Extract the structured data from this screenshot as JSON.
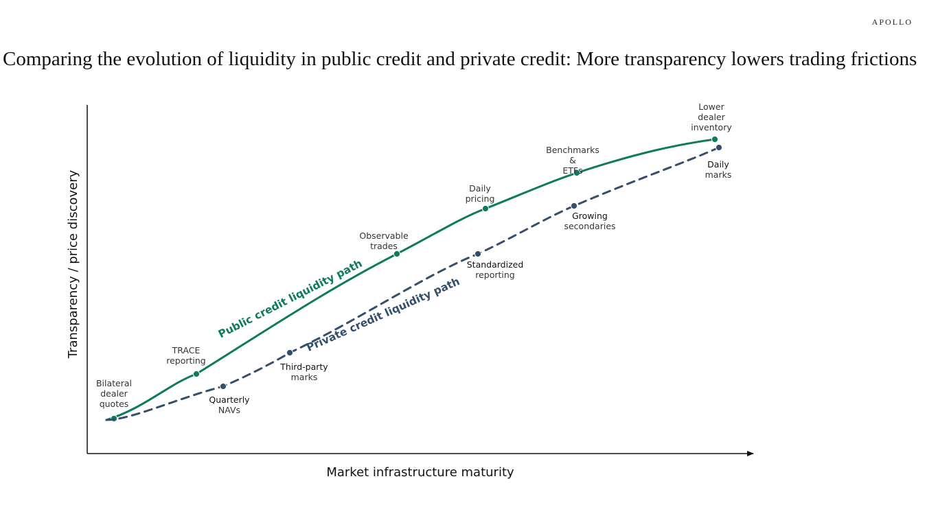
{
  "header": {
    "brand": "APOLLO",
    "title": "Comparing the evolution of liquidity in public credit and private credit: More transparency lowers trading frictions"
  },
  "colors": {
    "public": "#0e7a5e",
    "private": "#344f6b",
    "axis": "#111111"
  },
  "chart_data": {
    "type": "line",
    "xlabel": "Market infrastructure maturity",
    "ylabel": "Transparency / price discovery",
    "x_ticks": false,
    "y_ticks": false,
    "series": [
      {
        "name": "Public credit liquidity path",
        "style": "solid",
        "points": [
          {
            "label": "Bilateral dealer quotes"
          },
          {
            "label": "TRACE reporting"
          },
          {
            "label": "Observable trades"
          },
          {
            "label": "Daily pricing"
          },
          {
            "label": "Benchmarks & ETFs"
          },
          {
            "label": "Lower dealer inventory"
          }
        ]
      },
      {
        "name": "Private credit liquidity path",
        "style": "dashed",
        "points": [
          {
            "label": "Quarterly NAVs"
          },
          {
            "label": "Third-party marks"
          },
          {
            "label": "Standardized reporting"
          },
          {
            "label": "Growing secondaries"
          },
          {
            "label": "Daily marks"
          }
        ]
      }
    ]
  }
}
